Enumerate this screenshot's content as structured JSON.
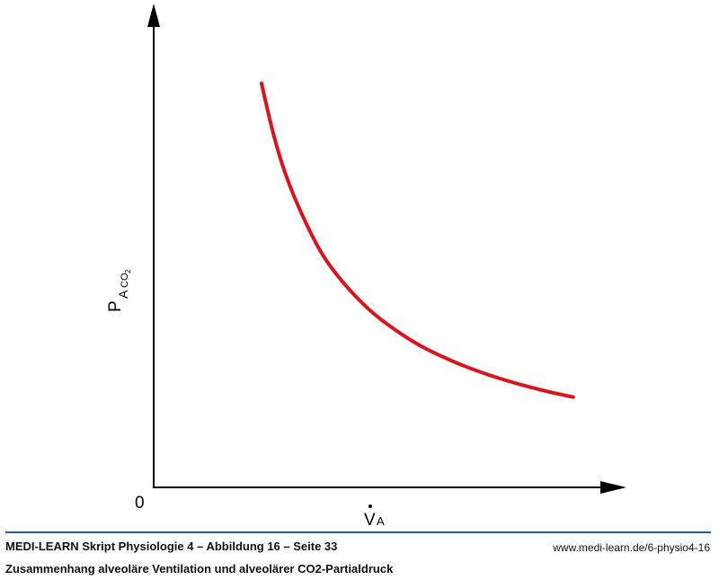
{
  "chart_data": {
    "type": "line",
    "title": "",
    "xlabel": {
      "main": "V",
      "sub": "A"
    },
    "ylabel": {
      "main": "P",
      "sub": "A",
      "subsub": "CO",
      "subsubsub": "2"
    },
    "origin_label": "0",
    "x": [
      1.0,
      1.15,
      1.3,
      1.5,
      1.75,
      2.0,
      2.3,
      2.6,
      3.0,
      3.5,
      4.0,
      4.5,
      4.9
    ],
    "series": [
      {
        "values": [
          100,
          87,
          77,
          67,
          57,
          50,
          43.5,
          38.5,
          33.3,
          28.6,
          25,
          22.2,
          20.4
        ]
      }
    ],
    "xlim": [
      -0.35,
      5.6
    ],
    "ylim": [
      -2.5,
      120
    ],
    "grid": false,
    "legend": "none",
    "line_color": "#d9141c",
    "axis_color": "#000000"
  },
  "footer": {
    "title": "MEDI-LEARN Skript Physiologie 4 – Abbildung 16 – Seite 33",
    "url": "www.medi-learn.de/6-physio4-16",
    "subtitle": "Zusammenhang alveoläre Ventilation und alveolärer CO2-Partialdruck",
    "rule_color": "#1f5fa8"
  }
}
